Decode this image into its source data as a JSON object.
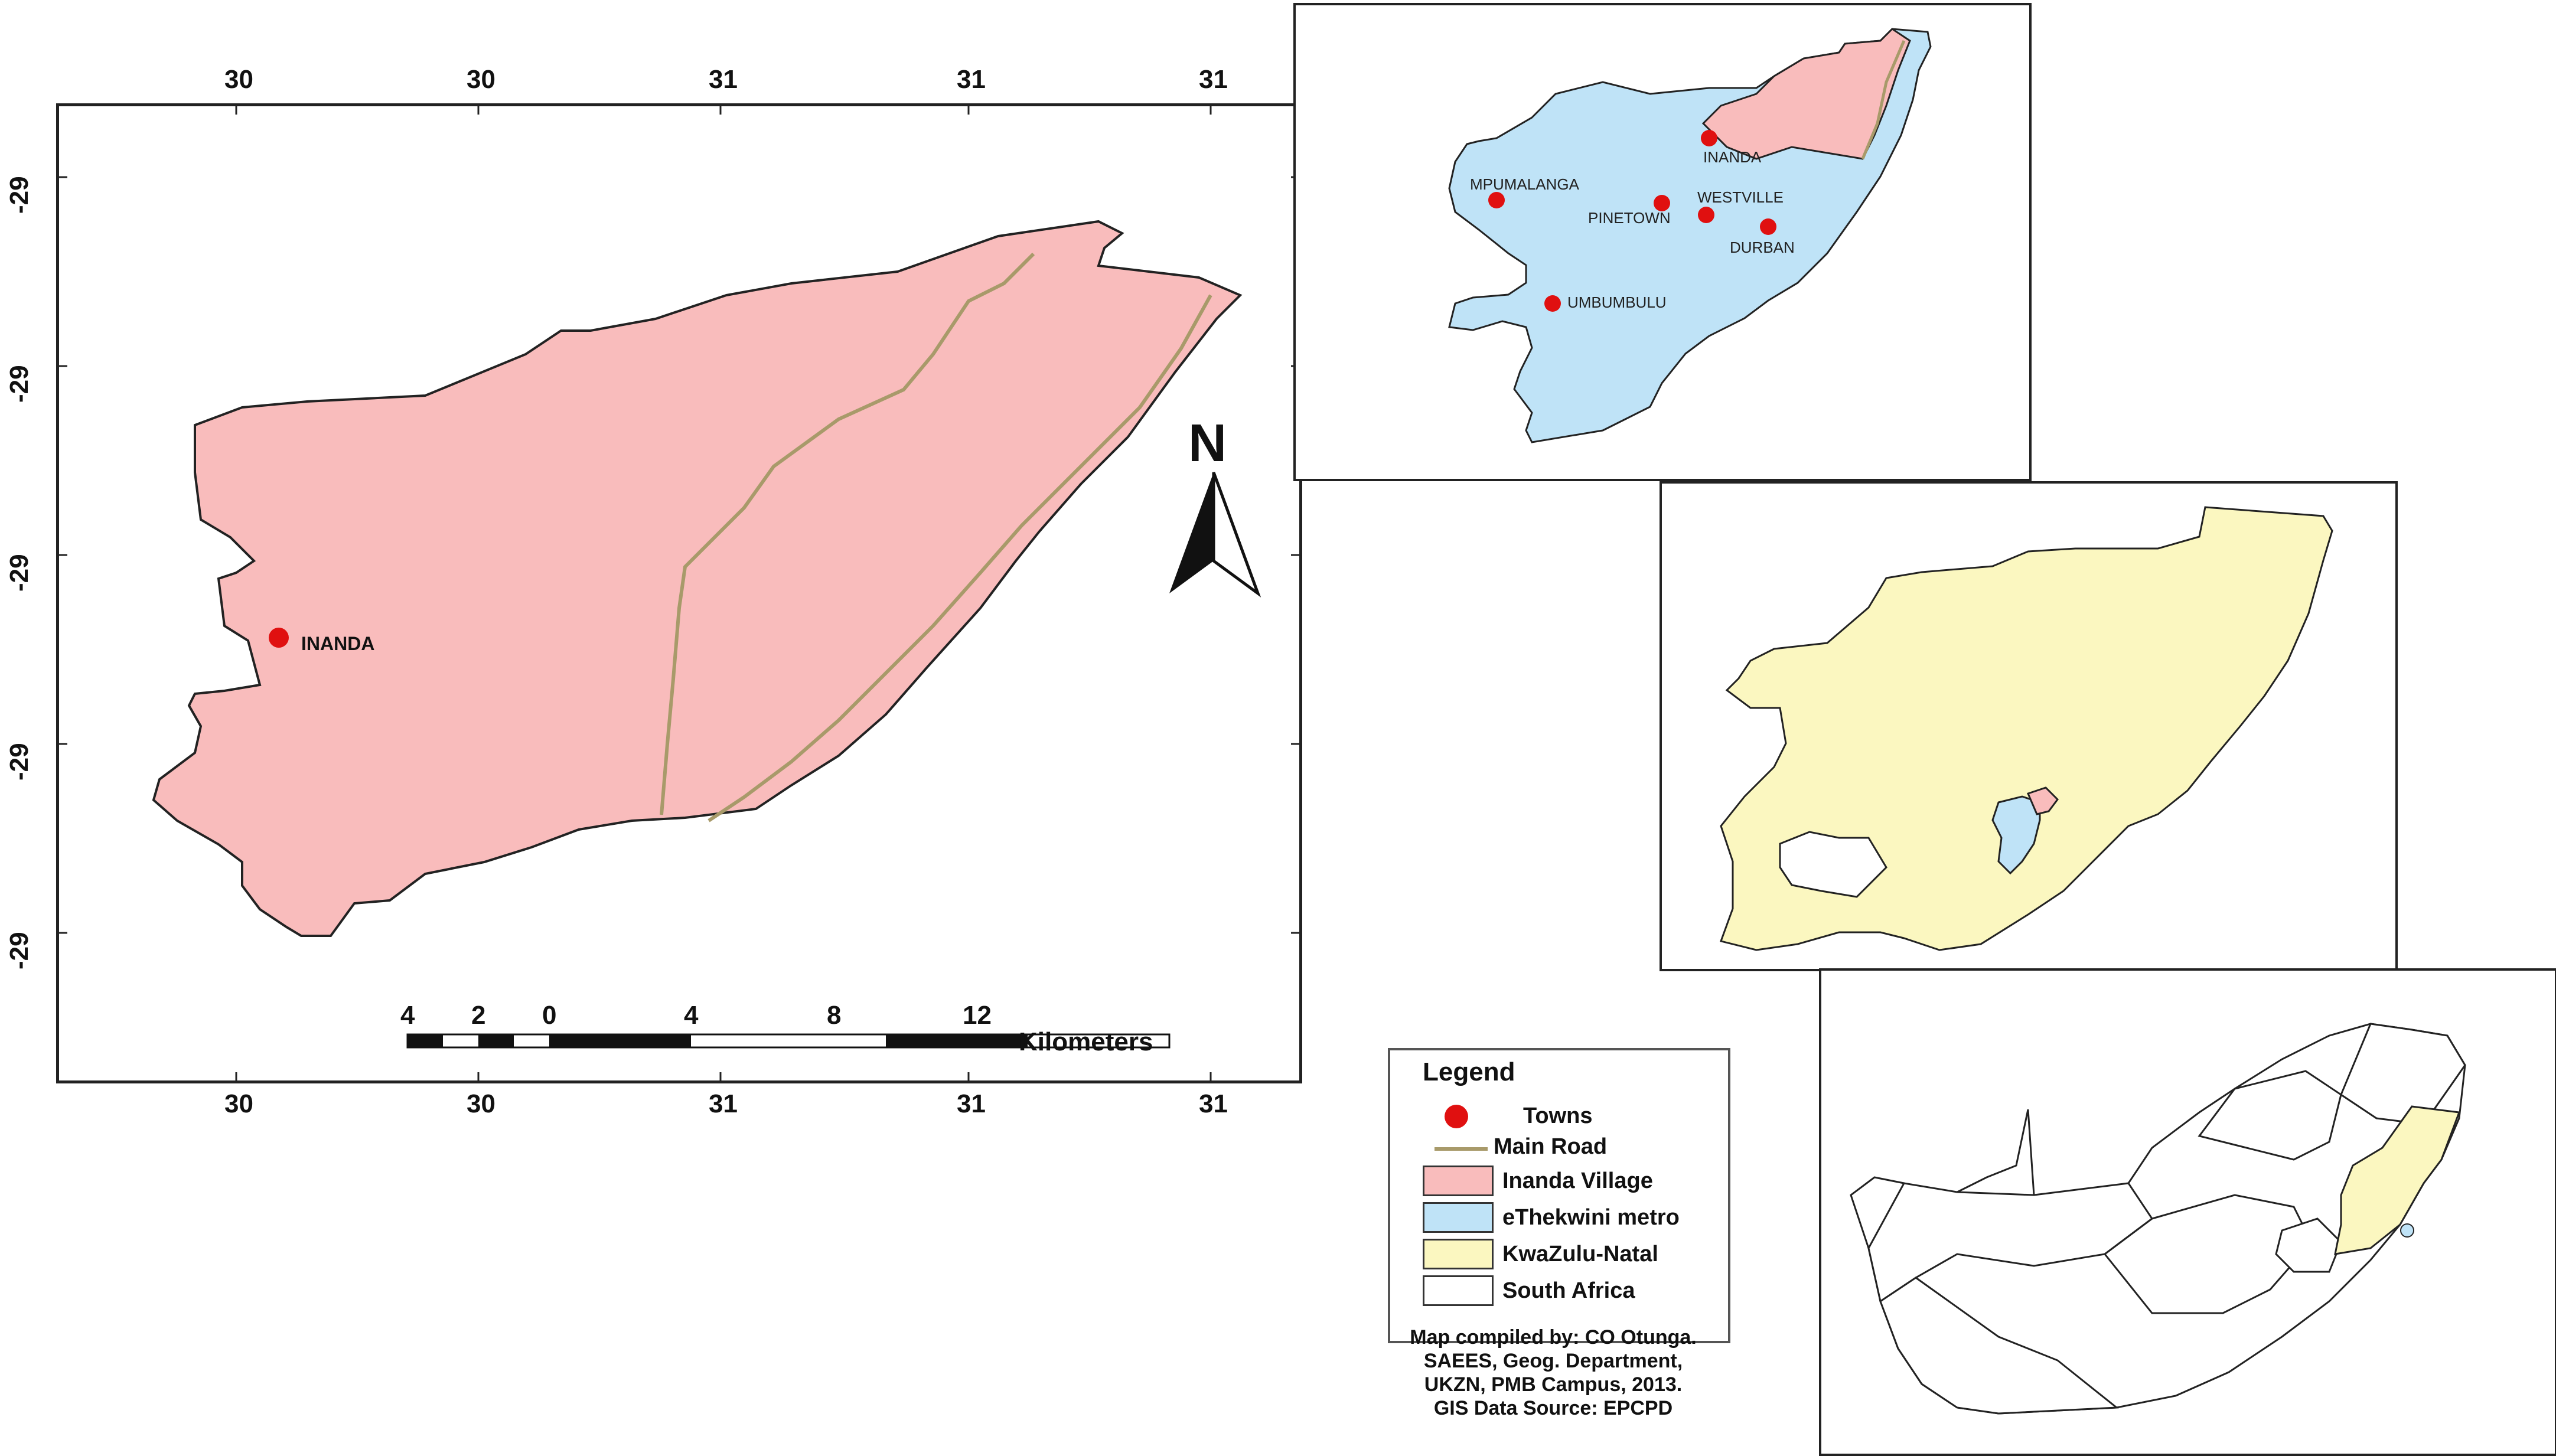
{
  "main_map": {
    "top_ticks": [
      "30",
      "30",
      "31",
      "31",
      "31"
    ],
    "bottom_ticks": [
      "30",
      "30",
      "31",
      "31",
      "31"
    ],
    "left_ticks": [
      "-29",
      "-29",
      "-29",
      "-29",
      "-29"
    ],
    "town_label": "INANDA",
    "north_label": "N",
    "scale": {
      "numbers": [
        "4",
        "2",
        "0",
        "4",
        "8",
        "12"
      ],
      "unit": "Kilometers"
    }
  },
  "inset_ethekwini": {
    "towns": [
      "INANDA",
      "MPUMALANGA",
      "PINETOWN",
      "WESTVILLE",
      "DURBAN",
      "UMBUMBULU"
    ]
  },
  "legend": {
    "title": "Legend",
    "items": [
      {
        "label": "Towns",
        "symbol": "dot",
        "color": "#e01010"
      },
      {
        "label": "Main Road",
        "symbol": "line",
        "color": "#a89a6a"
      },
      {
        "label": "Inanda Village",
        "symbol": "box",
        "color": "#f9bcbc"
      },
      {
        "label": "eThekwini metro",
        "symbol": "box",
        "color": "#bfe3f7"
      },
      {
        "label": "KwaZulu-Natal",
        "symbol": "box",
        "color": "#fbf7c0"
      },
      {
        "label": "South Africa",
        "symbol": "box",
        "color": "#ffffff"
      }
    ]
  },
  "credit": {
    "lines": [
      "Map compiled by: CO Otunga.",
      "SAEES, Geog. Department,",
      "UKZN, PMB Campus, 2013.",
      "GIS Data Source: EPCPD"
    ]
  },
  "colors": {
    "inanda": "#f9bcbc",
    "ethekwini": "#bfe3f7",
    "kzn": "#fbf7c0",
    "road": "#a89a6a",
    "town": "#e01010"
  }
}
